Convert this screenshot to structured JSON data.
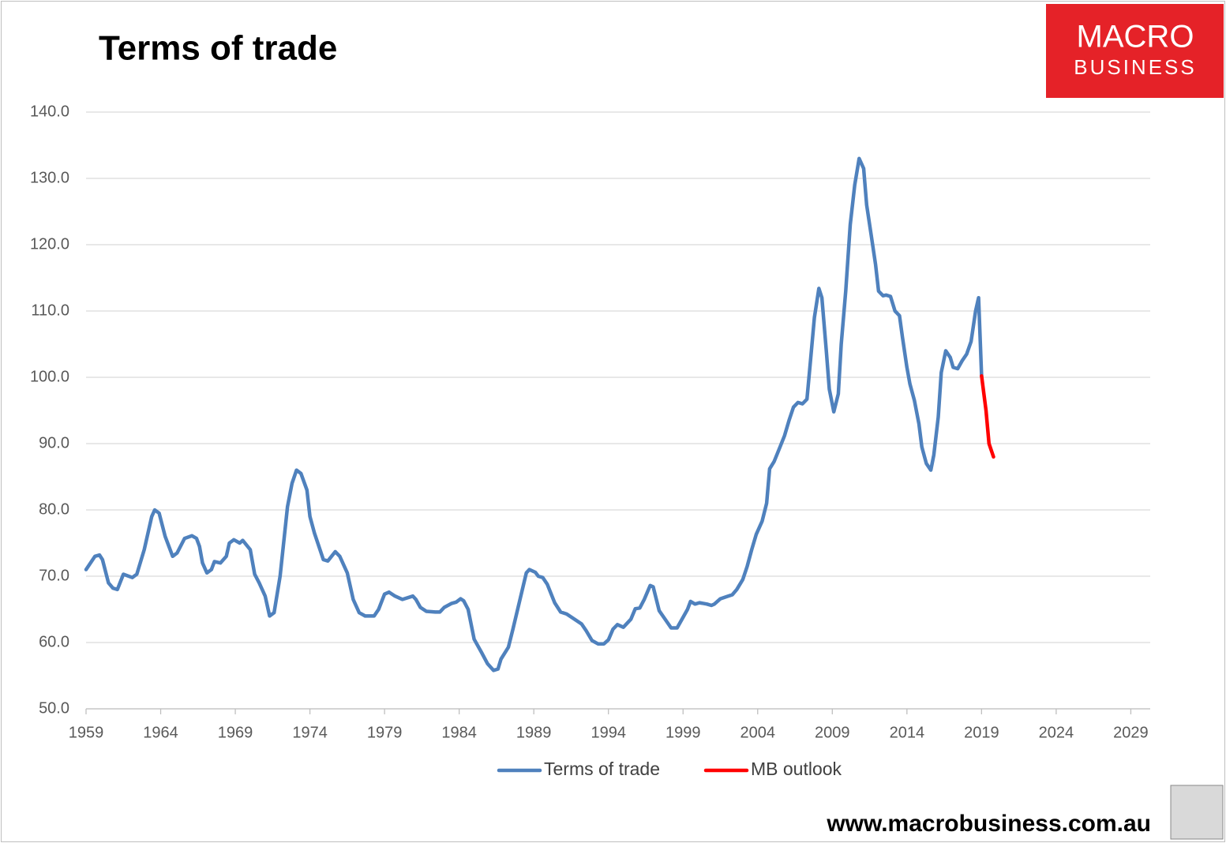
{
  "chart_data": {
    "type": "line",
    "title": "Terms of trade",
    "logo": [
      "MACRO",
      "BUSINESS"
    ],
    "source": "www.macrobusiness.com.au",
    "xlim": [
      1959,
      2030.3
    ],
    "xticks": [
      1959,
      1964,
      1969,
      1974,
      1979,
      1984,
      1989,
      1994,
      1999,
      2004,
      2009,
      2014,
      2019,
      2024,
      2029
    ],
    "ylim": [
      50,
      140
    ],
    "yticks": [
      {
        "value": 50,
        "label": "50.0"
      },
      {
        "value": 60,
        "label": "60.0"
      },
      {
        "value": 70,
        "label": "70.0"
      },
      {
        "value": 80,
        "label": "80.0"
      },
      {
        "value": 90,
        "label": "90.0"
      },
      {
        "value": 100,
        "label": "100.0"
      },
      {
        "value": 110,
        "label": "110.0"
      },
      {
        "value": 120,
        "label": "120.0"
      },
      {
        "value": 130,
        "label": "130.0"
      },
      {
        "value": 140,
        "label": "140.0"
      }
    ],
    "grid": true,
    "legend": "bottom",
    "series": [
      {
        "name": "Terms of trade",
        "color": "#4f81bd",
        "x": [
          1959.0,
          1959.6,
          1959.9,
          1960.1,
          1960.5,
          1960.8,
          1961.1,
          1961.5,
          1962.1,
          1962.4,
          1962.9,
          1963.4,
          1963.6,
          1963.9,
          1964.3,
          1964.8,
          1965.1,
          1965.6,
          1966.1,
          1966.4,
          1966.6,
          1966.8,
          1967.1,
          1967.4,
          1967.6,
          1968.0,
          1968.4,
          1968.6,
          1968.9,
          1969.3,
          1969.5,
          1970.0,
          1970.3,
          1970.6,
          1971.0,
          1971.3,
          1971.6,
          1972.0,
          1972.5,
          1972.8,
          1973.1,
          1973.4,
          1973.8,
          1974.0,
          1974.3,
          1974.9,
          1975.2,
          1975.7,
          1976.0,
          1976.5,
          1976.9,
          1977.3,
          1977.7,
          1978.3,
          1978.6,
          1979.0,
          1979.3,
          1979.7,
          1980.2,
          1980.9,
          1981.1,
          1981.4,
          1981.8,
          1982.4,
          1982.7,
          1983.0,
          1983.5,
          1983.8,
          1984.1,
          1984.3,
          1984.6,
          1985.0,
          1985.5,
          1985.9,
          1986.3,
          1986.6,
          1986.8,
          1987.3,
          1987.6,
          1988.0,
          1988.5,
          1988.7,
          1989.1,
          1989.3,
          1989.6,
          1989.9,
          1990.4,
          1990.8,
          1991.2,
          1991.6,
          1992.2,
          1992.5,
          1992.9,
          1993.3,
          1993.7,
          1994.0,
          1994.3,
          1994.6,
          1995.0,
          1995.5,
          1995.8,
          1996.1,
          1996.4,
          1996.8,
          1997.0,
          1997.4,
          1997.8,
          1998.2,
          1998.6,
          1998.9,
          1999.3,
          1999.5,
          1999.8,
          2000.1,
          2000.6,
          2000.9,
          2001.1,
          2001.5,
          2001.9,
          2002.3,
          2002.6,
          2003.0,
          2003.3,
          2003.6,
          2003.9,
          2004.3,
          2004.6,
          2004.8,
          2005.1,
          2005.5,
          2005.8,
          2006.1,
          2006.4,
          2006.7,
          2007.0,
          2007.3,
          2007.5,
          2007.8,
          2008.1,
          2008.3,
          2008.6,
          2008.8,
          2009.1,
          2009.4,
          2009.6,
          2009.9,
          2010.2,
          2010.5,
          2010.8,
          2011.1,
          2011.3,
          2011.6,
          2011.9,
          2012.1,
          2012.4,
          2012.6,
          2012.9,
          2013.2,
          2013.5,
          2013.7,
          2014.0,
          2014.2,
          2014.5,
          2014.8,
          2015.0,
          2015.3,
          2015.6,
          2015.8,
          2016.1,
          2016.3,
          2016.6,
          2016.9,
          2017.1,
          2017.4,
          2017.7,
          2018.0,
          2018.3,
          2018.6,
          2018.8,
          2019.0
        ],
        "values": [
          71,
          73,
          73.2,
          72.5,
          69,
          68.2,
          68,
          70.3,
          69.8,
          70.3,
          74,
          79,
          80,
          79.5,
          76,
          73,
          73.5,
          75.7,
          76.1,
          75.7,
          74.5,
          72,
          70.5,
          71,
          72.2,
          72,
          73,
          75,
          75.5,
          75,
          75.4,
          74,
          70.3,
          69,
          67,
          64,
          64.5,
          70,
          80.5,
          84,
          86,
          85.5,
          83,
          79,
          76.5,
          72.5,
          72.3,
          73.7,
          73,
          70.5,
          66.5,
          64.5,
          64,
          64,
          65,
          67.3,
          67.6,
          67,
          66.5,
          67,
          66.5,
          65.3,
          64.7,
          64.6,
          64.6,
          65.3,
          65.9,
          66.1,
          66.6,
          66.3,
          65,
          60.5,
          58.5,
          56.8,
          55.8,
          56,
          57.5,
          59.3,
          62,
          65.8,
          70.5,
          71,
          70.6,
          70,
          69.8,
          68.8,
          66,
          64.6,
          64.3,
          63.7,
          62.8,
          61.8,
          60.3,
          59.8,
          59.8,
          60.4,
          62,
          62.7,
          62.3,
          63.5,
          65.1,
          65.2,
          66.5,
          68.6,
          68.4,
          64.8,
          63.5,
          62.2,
          62.2,
          63.4,
          65,
          66.2,
          65.8,
          66,
          65.8,
          65.6,
          65.8,
          66.6,
          66.9,
          67.2,
          68,
          69.5,
          71.5,
          74,
          76.3,
          78.3,
          81,
          86.2,
          87.3,
          89.5,
          91.2,
          93.5,
          95.5,
          96.2,
          96,
          96.7,
          101.5,
          109,
          113.4,
          112,
          104,
          98.2,
          94.8,
          97.5,
          105,
          113,
          123,
          129,
          133,
          131.5,
          126,
          121.5,
          117,
          113,
          112.3,
          112.4,
          112.2,
          110,
          109.3,
          106,
          101.5,
          99,
          96.5,
          93,
          89.5,
          87,
          86,
          88.3,
          94,
          100.7,
          104,
          103,
          101.5,
          101.3,
          102.5,
          103.5,
          105.4,
          110,
          112,
          100.2
        ]
      },
      {
        "name": "MB outlook",
        "color": "#ff0000",
        "x": [
          2019.0,
          2019.3,
          2019.5,
          2019.8
        ],
        "values": [
          100.2,
          95,
          90,
          88
        ]
      }
    ]
  }
}
